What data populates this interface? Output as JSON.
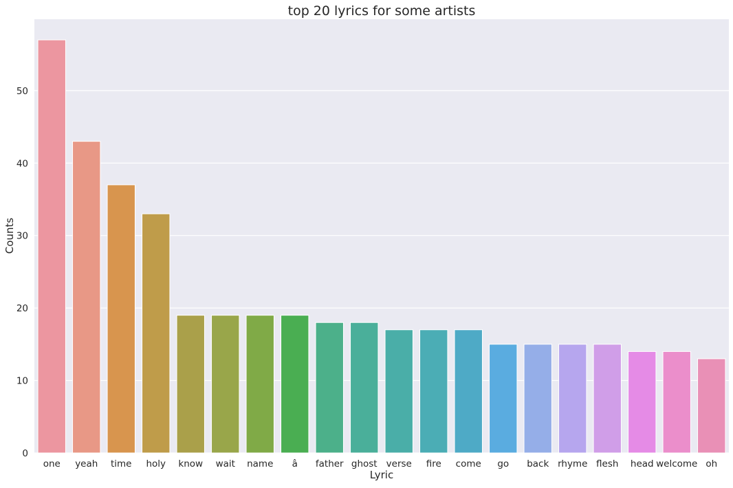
{
  "chart_data": {
    "type": "bar",
    "title": "top 20 lyrics for some artists",
    "xlabel": "Lyric",
    "ylabel": "Counts",
    "categories": [
      "one",
      "yeah",
      "time",
      "holy",
      "know",
      "wait",
      "name",
      "â",
      "father",
      "ghost",
      "verse",
      "fire",
      "come",
      "go",
      "back",
      "rhyme",
      "flesh",
      "head",
      "welcome",
      "oh"
    ],
    "values": [
      57,
      43,
      37,
      33,
      19,
      19,
      19,
      19,
      18,
      18,
      17,
      17,
      17,
      15,
      15,
      15,
      15,
      14,
      14,
      13
    ],
    "ylim": [
      0,
      59.85
    ],
    "yticks": [
      0,
      10,
      20,
      30,
      40,
      50
    ],
    "grid": true,
    "colors": [
      "#ec96a0",
      "#e89886",
      "#d8954e",
      "#bf9c4a",
      "#aaa04a",
      "#99a64a",
      "#80aa47",
      "#4aae52",
      "#4cb08a",
      "#4aaf9a",
      "#4aaea8",
      "#4badb5",
      "#4eaac6",
      "#5aace0",
      "#95aee8",
      "#b6a6ee",
      "#d09ee8",
      "#e58be6",
      "#eb8ecb",
      "#e990b6"
    ]
  }
}
